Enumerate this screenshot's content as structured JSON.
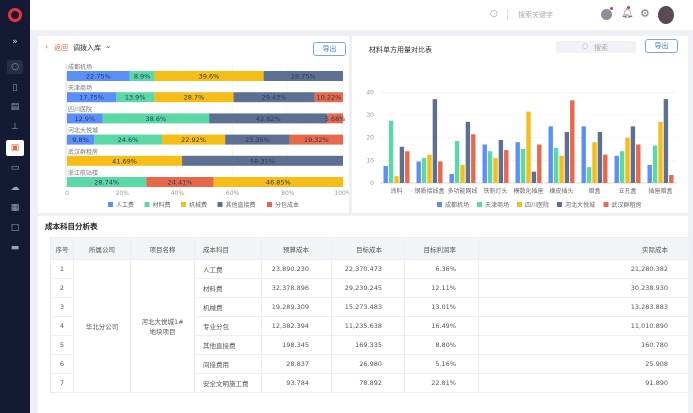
{
  "topbar": {
    "search_placeholder": "搜索关键字"
  },
  "left_panel": {
    "back_label": "返回",
    "title": "调拨入库",
    "export_label": "导出"
  },
  "right_panel": {
    "title": "材料单方用量对比表",
    "search_placeholder": "搜索",
    "export_label": "导出"
  },
  "colors": {
    "人工费": "#5b8ff9",
    "材料费": "#5ad8a6",
    "机械费": "#f6bd16",
    "其他直接费": "#5d7092",
    "分包成本": "#e8684a"
  },
  "chart_data": [
    {
      "type": "bar",
      "orientation": "horizontal",
      "stacked": true,
      "percent": true,
      "categories": [
        "成都机场",
        "天津商场",
        "四川医院",
        "河北大悦城",
        "武汉群租房",
        "浙江航站楼"
      ],
      "legend": [
        "人工费",
        "材料费",
        "机械费",
        "其他直接费",
        "分包成本"
      ],
      "xticks": [
        "0",
        "20%",
        "40%",
        "60%",
        "80%",
        "100%"
      ],
      "xlim": [
        0,
        100
      ],
      "legend_position": "bottom",
      "rows": [
        [
          {
            "s": "人工费",
            "v": 22.75,
            "label": "22.75%"
          },
          {
            "s": "材料费",
            "v": 8.9,
            "label": "8.9%"
          },
          {
            "s": "机械费",
            "v": 39.6,
            "label": "39.6%"
          },
          {
            "s": "其他直接费",
            "v": 28.75,
            "label": "28.75%"
          }
        ],
        [
          {
            "s": "人工费",
            "v": 17.75,
            "label": "17.75%"
          },
          {
            "s": "材料费",
            "v": 13.9,
            "label": "13.9%"
          },
          {
            "s": "机械费",
            "v": 28.7,
            "label": "28.7%"
          },
          {
            "s": "其他直接费",
            "v": 29.43,
            "label": "29.43%"
          },
          {
            "s": "分包成本",
            "v": 10.22,
            "label": "10.22%"
          }
        ],
        [
          {
            "s": "人工费",
            "v": 12.9,
            "label": "12.9%"
          },
          {
            "s": "材料费",
            "v": 38.6,
            "label": "38.6%"
          },
          {
            "s": "其他直接费",
            "v": 42.82,
            "label": "42.82%"
          },
          {
            "s": "分包成本",
            "v": 5.68,
            "label": "5.68%"
          }
        ],
        [
          {
            "s": "人工费",
            "v": 9.8,
            "label": "9.8%"
          },
          {
            "s": "材料费",
            "v": 24.6,
            "label": "24.6%"
          },
          {
            "s": "机械费",
            "v": 22.92,
            "label": "22.92%"
          },
          {
            "s": "其他直接费",
            "v": 23.36,
            "label": "23.36%"
          },
          {
            "s": "分包成本",
            "v": 19.32,
            "label": "19.32%"
          }
        ],
        [
          {
            "s": "机械费",
            "v": 41.69,
            "label": "41.69%"
          },
          {
            "s": "其他直接费",
            "v": 58.31,
            "label": "58.31%"
          }
        ],
        [
          {
            "s": "材料费",
            "v": 28.74,
            "label": "28.74%"
          },
          {
            "s": "分包成本",
            "v": 24.41,
            "label": "24.41%"
          },
          {
            "s": "机械费",
            "v": 46.85,
            "label": "46.85%"
          }
        ]
      ]
    },
    {
      "type": "bar",
      "title": "材料单方用量对比表",
      "categories": [
        "涂料",
        "钢质接线盒",
        "多功能网线",
        "铁制灯头",
        "模数化插座",
        "橡皮插头",
        "暗盒",
        "五孔盒",
        "插座暗盒"
      ],
      "ylim": [
        0,
        45
      ],
      "yticks": [
        0,
        10,
        20,
        30,
        40
      ],
      "grid": true,
      "legend_position": "bottom",
      "series": [
        {
          "name": "成都机场",
          "color": "#5b8ff9",
          "values": [
            7.5,
            9.5,
            4,
            17,
            18,
            25,
            25,
            12,
            8
          ]
        },
        {
          "name": "天津商场",
          "color": "#5ad8a6",
          "values": [
            27.5,
            11,
            18.5,
            14,
            15,
            15.5,
            7,
            14,
            16.5
          ]
        },
        {
          "name": "四川医院",
          "color": "#f6bd16",
          "values": [
            3,
            12.5,
            8,
            11,
            31.5,
            12,
            18,
            20,
            27
          ]
        },
        {
          "name": "河北大悦城",
          "color": "#5d7092",
          "values": [
            16,
            37,
            27,
            19,
            5,
            22.5,
            22.5,
            25,
            37
          ]
        },
        {
          "name": "武汉群租房",
          "color": "#e8684a",
          "values": [
            14,
            9.5,
            21.5,
            14.5,
            17,
            36.5,
            12.5,
            17,
            3.5
          ]
        }
      ]
    }
  ],
  "table": {
    "title": "成本科目分析表",
    "headers": [
      "序号",
      "所属公司",
      "项目名称",
      "成本科目",
      "预算成本",
      "目标成本",
      "目标利润率",
      "实际成本"
    ],
    "company": "华北分公司",
    "project": "河北大悦城1#地块项目",
    "rows": [
      {
        "no": "1",
        "item": "人工费",
        "budget": "23,890.230",
        "target": "22,370.473",
        "rate": "6.36%",
        "actual": "21,280.382"
      },
      {
        "no": "2",
        "item": "材料费",
        "budget": "32,378.896",
        "target": "29,239.245",
        "rate": "12.11%",
        "actual": "30,238.930"
      },
      {
        "no": "3",
        "item": "机械费",
        "budget": "19,289.309",
        "target": "15,273.483",
        "rate": "13.01%",
        "actual": "13,283.883"
      },
      {
        "no": "4",
        "item": "专业分包",
        "budget": "12,382.394",
        "target": "11,235.638",
        "rate": "16.49%",
        "actual": "11,010.890"
      },
      {
        "no": "5",
        "item": "其他直接费",
        "budget": "198.345",
        "target": "169.335",
        "rate": "8.80%",
        "actual": "160.780"
      },
      {
        "no": "6",
        "item": "间接费用",
        "budget": "28.837",
        "target": "26.980",
        "rate": "5.16%",
        "actual": "25.908"
      },
      {
        "no": "7",
        "item": "安全文明施工费",
        "budget": "93.784",
        "target": "78.892",
        "rate": "22.81%",
        "actual": "91.890"
      }
    ]
  }
}
